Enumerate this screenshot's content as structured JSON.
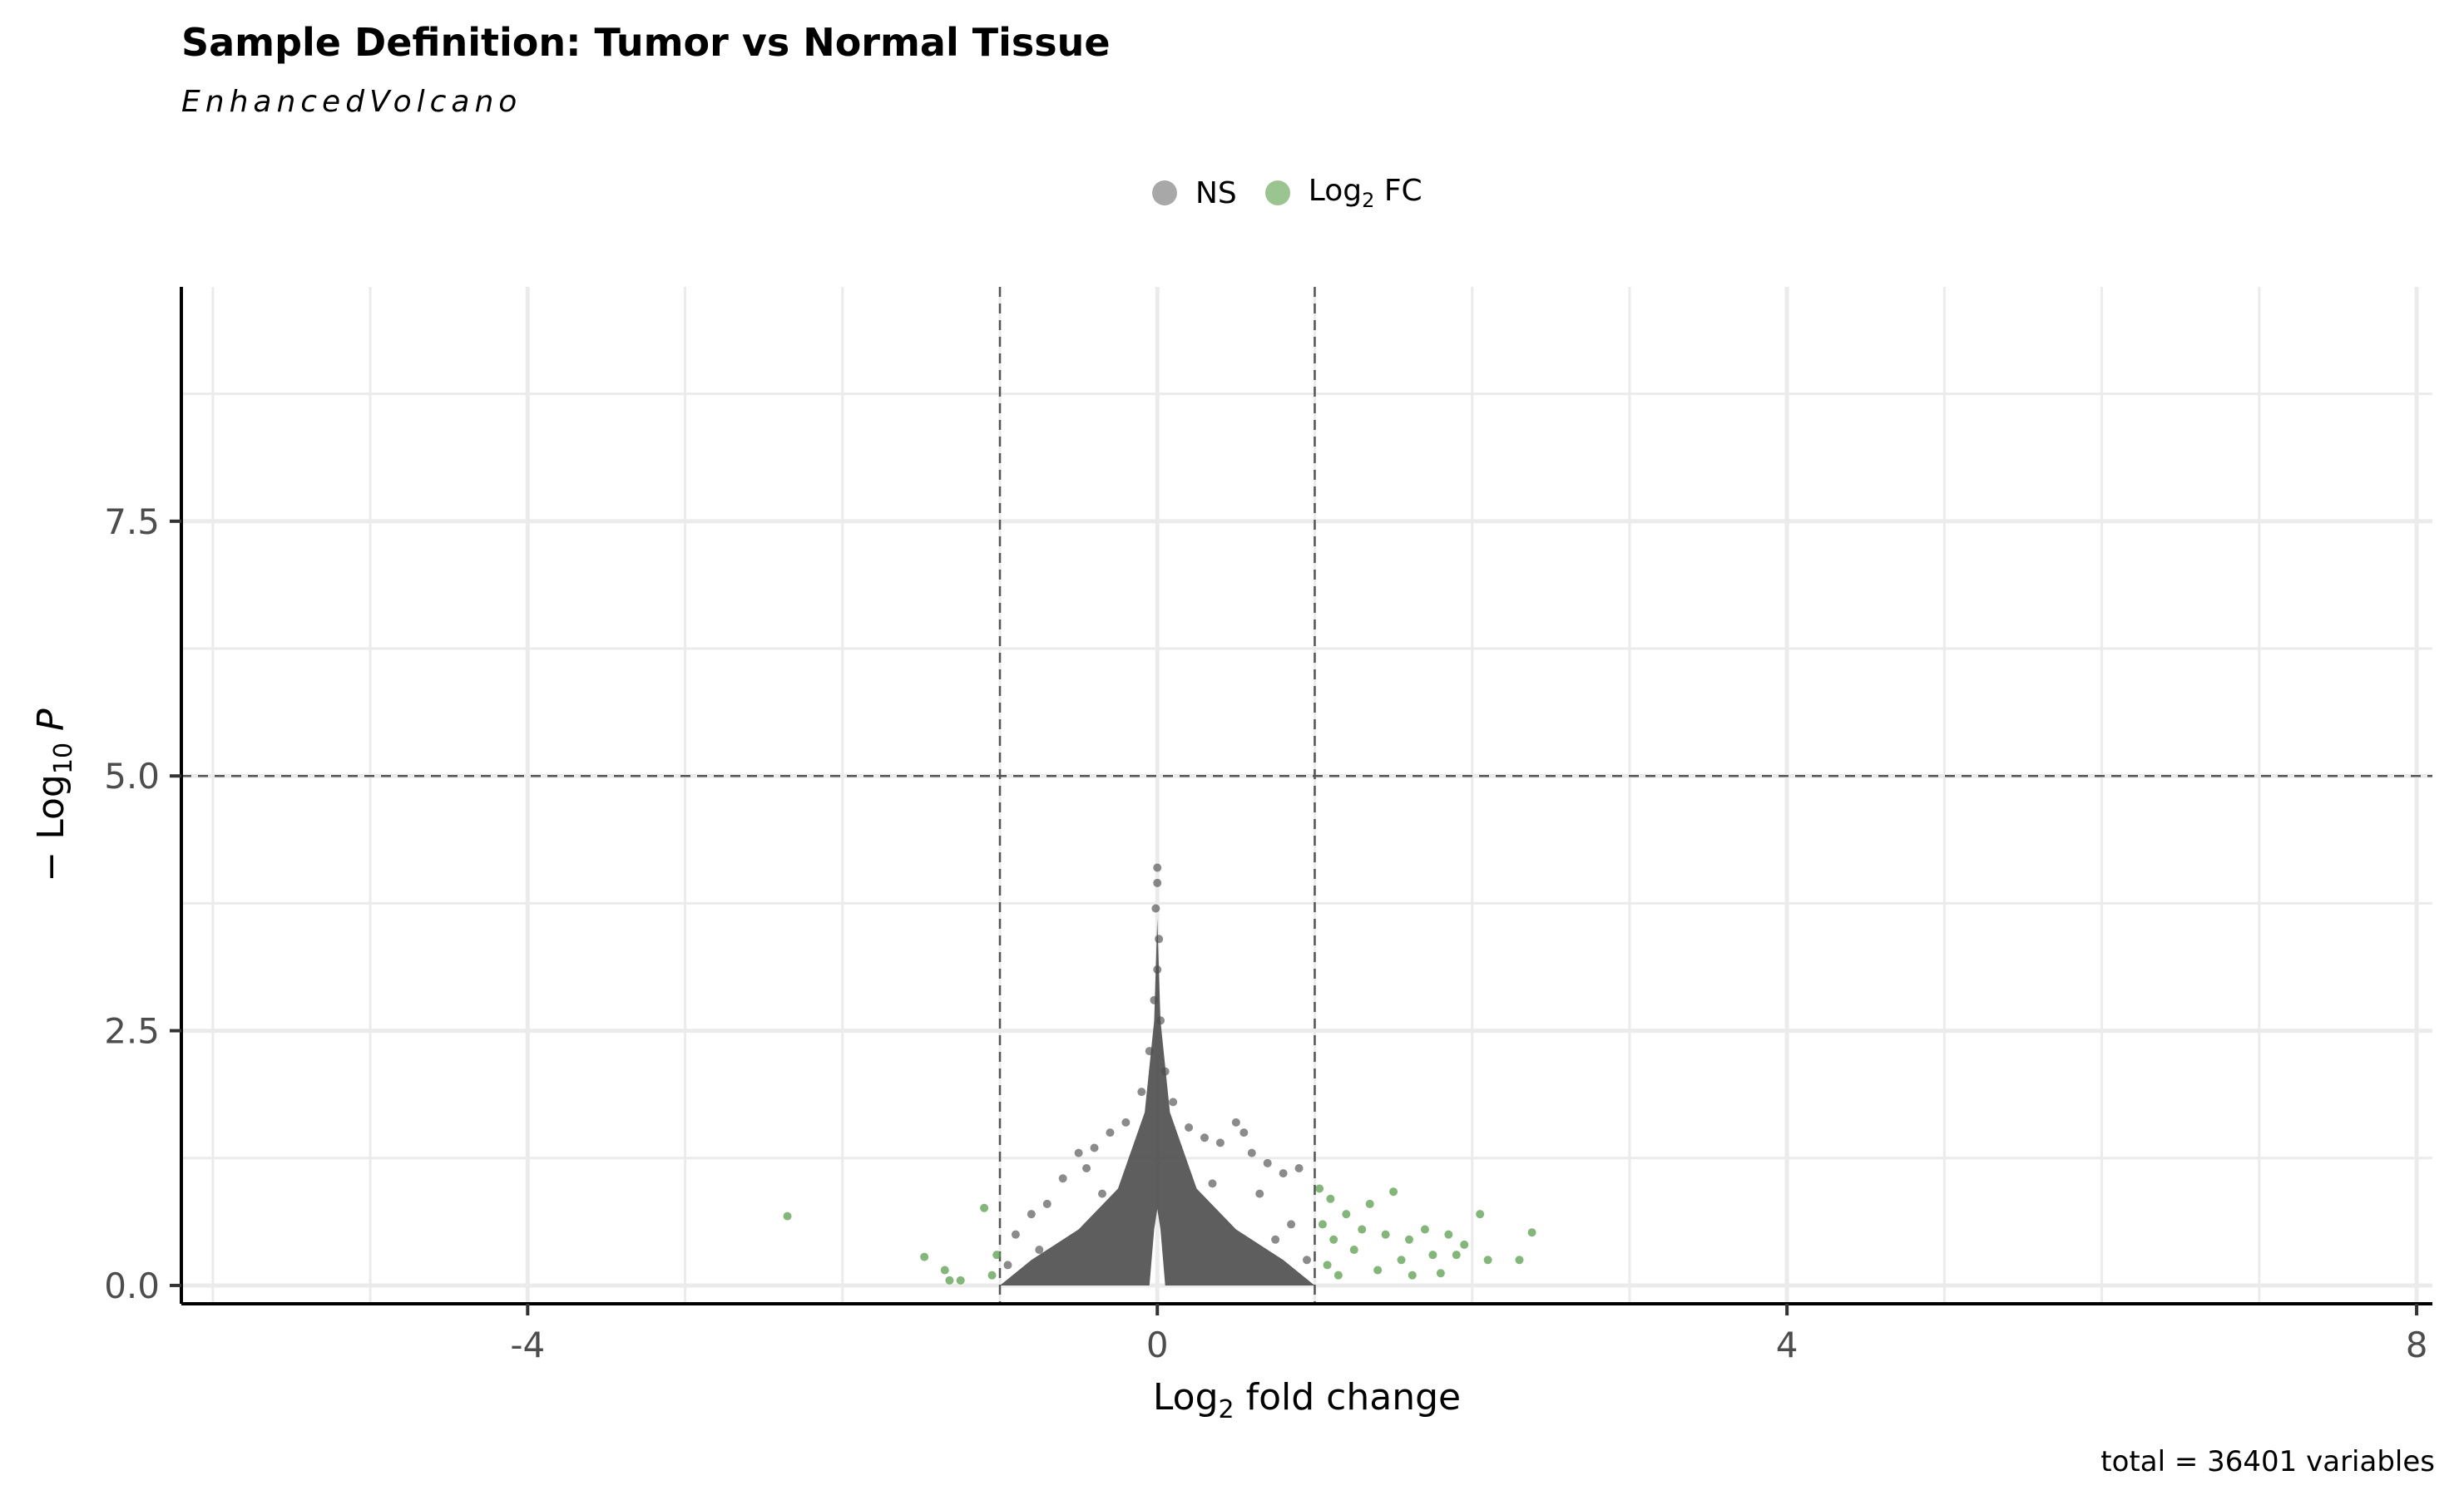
{
  "chart_data": {
    "type": "scatter",
    "title": "Sample Definition: Tumor vs Normal Tissue",
    "subtitle": "EnhancedVolcano",
    "xlabel": "Log2 fold change",
    "ylabel": "-Log10 P",
    "xlim": [
      -6.2,
      8.1
    ],
    "ylim": [
      -0.18,
      9.8
    ],
    "x_ticks": [
      -4,
      0,
      4,
      8
    ],
    "x_tick_labels": [
      "-4",
      "0",
      "4",
      "8"
    ],
    "y_ticks": [
      0,
      2.5,
      5,
      7.5
    ],
    "y_tick_labels": [
      "0.0",
      "2.5",
      "5.0",
      "7.5"
    ],
    "grid": true,
    "legend_position": "top",
    "fc_cutoff": [
      -1,
      1
    ],
    "p_cutoff_neglog10": 5,
    "caption": "total = 36401 variables",
    "series": [
      {
        "name": "NS",
        "color": "#4d4d4d",
        "description_of_cloud": "dense volcano-shaped cloud centered at x=0",
        "points": [
          [
            0,
            4.1
          ],
          [
            0,
            3.95
          ],
          [
            -0.01,
            3.7
          ],
          [
            0.01,
            3.4
          ],
          [
            0,
            3.1
          ],
          [
            -0.02,
            2.8
          ],
          [
            0.02,
            2.6
          ],
          [
            -0.05,
            2.3
          ],
          [
            0.05,
            2.1
          ],
          [
            -0.1,
            1.9
          ],
          [
            0.1,
            1.8
          ],
          [
            -0.2,
            1.6
          ],
          [
            0.2,
            1.55
          ],
          [
            -0.3,
            1.5
          ],
          [
            0.3,
            1.45
          ],
          [
            0.4,
            1.4
          ],
          [
            -0.4,
            1.35
          ],
          [
            0.5,
            1.6
          ],
          [
            0.55,
            1.5
          ],
          [
            0.6,
            1.3
          ],
          [
            -0.5,
            1.3
          ],
          [
            -0.6,
            1.05
          ],
          [
            0.7,
            1.2
          ],
          [
            0.8,
            1.1
          ],
          [
            0.9,
            1.15
          ],
          [
            -0.7,
            0.8
          ],
          [
            -0.8,
            0.7
          ],
          [
            -0.9,
            0.5
          ],
          [
            0.85,
            0.6
          ],
          [
            -0.95,
            0.2
          ],
          [
            0.95,
            0.25
          ],
          [
            -0.75,
            0.35
          ],
          [
            0.75,
            0.45
          ],
          [
            -0.35,
            0.9
          ],
          [
            0.35,
            1.0
          ],
          [
            -0.45,
            1.15
          ],
          [
            0.65,
            0.9
          ]
        ]
      },
      {
        "name": "Log2 FC",
        "color": "#5a9e4c",
        "points": [
          [
            -2.35,
            0.68
          ],
          [
            -1.48,
            0.28
          ],
          [
            -1.35,
            0.15
          ],
          [
            -1.32,
            0.05
          ],
          [
            -1.25,
            0.05
          ],
          [
            -1.1,
            0.76
          ],
          [
            -1.05,
            0.1
          ],
          [
            -1.02,
            0.3
          ],
          [
            1.03,
            0.95
          ],
          [
            1.05,
            0.6
          ],
          [
            1.08,
            0.2
          ],
          [
            1.1,
            0.85
          ],
          [
            1.12,
            0.45
          ],
          [
            1.15,
            0.1
          ],
          [
            1.2,
            0.7
          ],
          [
            1.25,
            0.35
          ],
          [
            1.3,
            0.55
          ],
          [
            1.35,
            0.8
          ],
          [
            1.4,
            0.15
          ],
          [
            1.45,
            0.5
          ],
          [
            1.5,
            0.92
          ],
          [
            1.55,
            0.25
          ],
          [
            1.6,
            0.45
          ],
          [
            1.62,
            0.1
          ],
          [
            1.7,
            0.55
          ],
          [
            1.75,
            0.3
          ],
          [
            1.8,
            0.12
          ],
          [
            1.85,
            0.5
          ],
          [
            1.9,
            0.3
          ],
          [
            1.95,
            0.4
          ],
          [
            2.05,
            0.7
          ],
          [
            2.1,
            0.25
          ],
          [
            2.3,
            0.25
          ],
          [
            2.38,
            0.52
          ]
        ]
      }
    ]
  },
  "legend": {
    "items": [
      {
        "label": "NS",
        "sub": "",
        "suffix": "",
        "color": "#9e9e9e"
      },
      {
        "label": "Log",
        "sub": "2",
        "suffix": " FC",
        "color": "#8fbf84"
      }
    ]
  }
}
